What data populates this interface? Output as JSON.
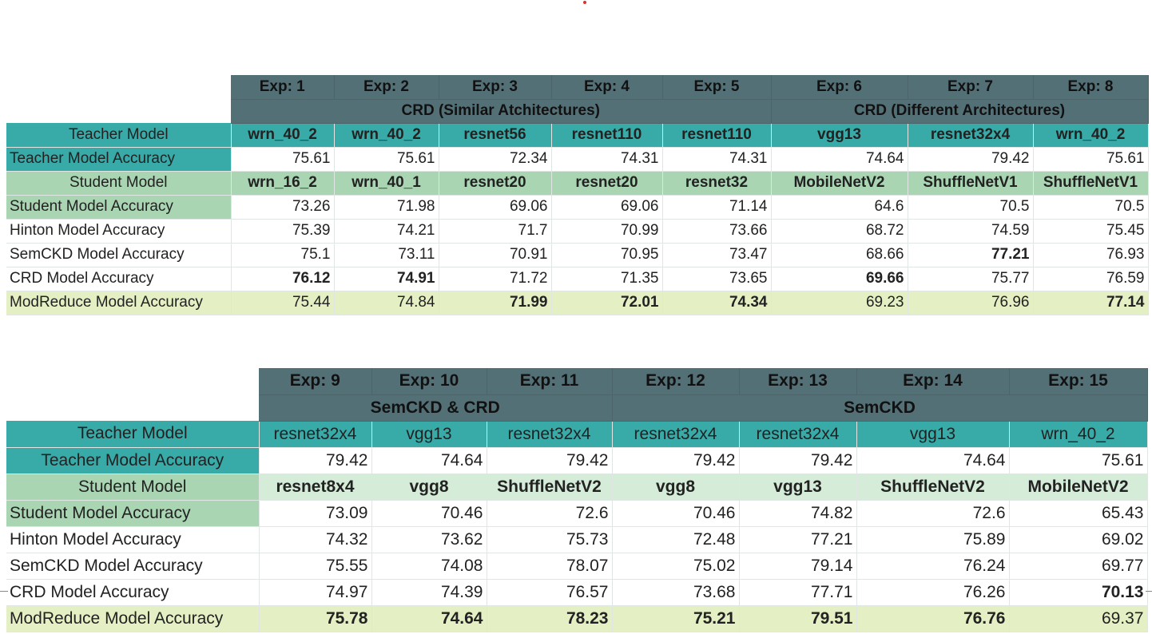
{
  "table1": {
    "exps": [
      "Exp: 1",
      "Exp: 2",
      "Exp: 3",
      "Exp: 4",
      "Exp: 5",
      "Exp: 6",
      "Exp: 7",
      "Exp: 8"
    ],
    "groups": [
      "CRD (Similar Atchitectures)",
      "CRD (Different Architectures)"
    ],
    "rows": [
      {
        "label": "Teacher Model",
        "cells": [
          "wrn_40_2",
          "wrn_40_2",
          "resnet56",
          "resnet110",
          "resnet110",
          "vgg13",
          "resnet32x4",
          "wrn_40_2"
        ]
      },
      {
        "label": "Teacher Model Accuracy",
        "cells": [
          "75.61",
          "75.61",
          "72.34",
          "74.31",
          "74.31",
          "74.64",
          "79.42",
          "75.61"
        ]
      },
      {
        "label": "Student Model",
        "cells": [
          "wrn_16_2",
          "wrn_40_1",
          "resnet20",
          "resnet20",
          "resnet32",
          "MobileNetV2",
          "ShuffleNetV1",
          "ShuffleNetV1"
        ]
      },
      {
        "label": "Student Model Accuracy",
        "cells": [
          "73.26",
          "71.98",
          "69.06",
          "69.06",
          "71.14",
          "64.6",
          "70.5",
          "70.5"
        ]
      },
      {
        "label": "Hinton Model Accuracy",
        "cells": [
          "75.39",
          "74.21",
          "71.7",
          "70.99",
          "73.66",
          "68.72",
          "74.59",
          "75.45"
        ]
      },
      {
        "label": "SemCKD Model Accuracy",
        "cells": [
          "75.1",
          "73.11",
          "70.91",
          "70.95",
          "73.47",
          "68.66",
          "77.21",
          "76.93"
        ]
      },
      {
        "label": "CRD Model Accuracy",
        "cells": [
          "76.12",
          "74.91",
          "71.72",
          "71.35",
          "73.65",
          "69.66",
          "75.77",
          "76.59"
        ]
      },
      {
        "label": "ModReduce Model Accuracy",
        "cells": [
          "75.44",
          "74.84",
          "71.99",
          "72.01",
          "74.34",
          "69.23",
          "76.96",
          "77.14"
        ]
      }
    ]
  },
  "table2": {
    "exps": [
      "Exp: 9",
      "Exp: 10",
      "Exp: 11",
      "Exp: 12",
      "Exp: 13",
      "Exp: 14",
      "Exp: 15"
    ],
    "groups": [
      "SemCKD & CRD",
      "SemCKD"
    ],
    "rows": [
      {
        "label": "Teacher Model",
        "cells": [
          "resnet32x4",
          "vgg13",
          "resnet32x4",
          "resnet32x4",
          "resnet32x4",
          "vgg13",
          "wrn_40_2"
        ]
      },
      {
        "label": "Teacher Model Accuracy",
        "cells": [
          "79.42",
          "74.64",
          "79.42",
          "79.42",
          "79.42",
          "74.64",
          "75.61"
        ]
      },
      {
        "label": "Student Model",
        "cells": [
          "resnet8x4",
          "vgg8",
          "ShuffleNetV2",
          "vgg8",
          "vgg13",
          "ShuffleNetV2",
          "MobileNetV2"
        ]
      },
      {
        "label": "Student Model Accuracy",
        "cells": [
          "73.09",
          "70.46",
          "72.6",
          "70.46",
          "74.82",
          "72.6",
          "65.43"
        ]
      },
      {
        "label": "Hinton Model Accuracy",
        "cells": [
          "74.32",
          "73.62",
          "75.73",
          "72.48",
          "77.21",
          "75.89",
          "69.02"
        ]
      },
      {
        "label": "SemCKD Model Accuracy",
        "cells": [
          "75.55",
          "74.08",
          "78.07",
          "75.02",
          "79.14",
          "76.24",
          "69.77"
        ]
      },
      {
        "label": "CRD Model Accuracy",
        "cells": [
          "74.97",
          "74.39",
          "76.57",
          "73.68",
          "77.71",
          "76.26",
          "70.13"
        ]
      },
      {
        "label": "ModReduce Model Accuracy",
        "cells": [
          "75.78",
          "74.64",
          "78.23",
          "75.21",
          "79.51",
          "76.76",
          "69.37"
        ]
      }
    ]
  }
}
